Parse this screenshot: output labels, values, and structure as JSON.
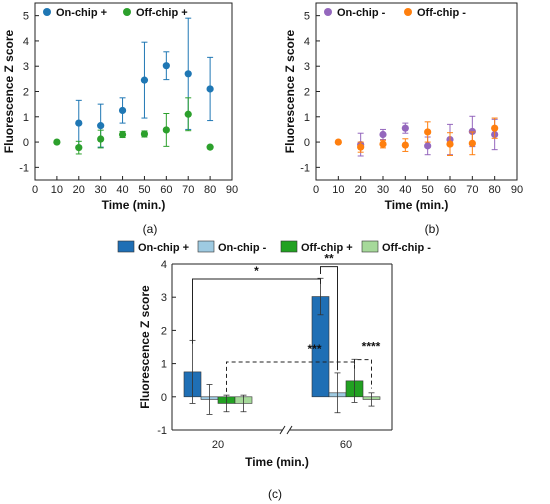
{
  "chart_data": [
    {
      "type": "scatter",
      "panel": "(a)",
      "xlabel": "Time (min.)",
      "ylabel": "Fluorescence Z score",
      "xlim": [
        0,
        90
      ],
      "ylim": [
        -1.5,
        5.5
      ],
      "xticks": [
        0,
        10,
        20,
        30,
        40,
        50,
        60,
        70,
        80,
        90
      ],
      "yticks": [
        -1,
        0,
        1,
        2,
        3,
        4,
        5
      ],
      "legend": "top-left",
      "grid": false,
      "series": [
        {
          "name": "On-chip +",
          "color": "#1f77b4",
          "points": [
            {
              "x": 20,
              "y": 0.75,
              "err": 0.9
            },
            {
              "x": 30,
              "y": 0.65,
              "err": 0.85
            },
            {
              "x": 40,
              "y": 1.25,
              "err": 0.5
            },
            {
              "x": 50,
              "y": 2.45,
              "err": 1.5
            },
            {
              "x": 60,
              "y": 3.02,
              "err": 0.55
            },
            {
              "x": 70,
              "y": 2.7,
              "err": 2.2
            },
            {
              "x": 80,
              "y": 2.1,
              "err": 1.25
            }
          ]
        },
        {
          "name": "Off-chip +",
          "color": "#2ca02c",
          "points": [
            {
              "x": 10,
              "y": 0.0,
              "err": 0.0
            },
            {
              "x": 20,
              "y": -0.22,
              "err": 0.25
            },
            {
              "x": 30,
              "y": 0.12,
              "err": 0.35
            },
            {
              "x": 40,
              "y": 0.3,
              "err": 0.12
            },
            {
              "x": 50,
              "y": 0.32,
              "err": 0.12
            },
            {
              "x": 60,
              "y": 0.48,
              "err": 0.65
            },
            {
              "x": 70,
              "y": 1.1,
              "err": 0.65
            },
            {
              "x": 80,
              "y": -0.2,
              "err": 0.0
            }
          ]
        }
      ]
    },
    {
      "type": "scatter",
      "panel": "(b)",
      "xlabel": "Time (min.)",
      "ylabel": "Fluorescence Z score",
      "xlim": [
        0,
        90
      ],
      "ylim": [
        -1.5,
        5.5
      ],
      "xticks": [
        0,
        10,
        20,
        30,
        40,
        50,
        60,
        70,
        80,
        90
      ],
      "yticks": [
        -1,
        0,
        1,
        2,
        3,
        4,
        5
      ],
      "legend": "top-left",
      "grid": false,
      "series": [
        {
          "name": "On-chip -",
          "color": "#9467bd",
          "points": [
            {
              "x": 20,
              "y": -0.1,
              "err": 0.45
            },
            {
              "x": 30,
              "y": 0.3,
              "err": 0.2
            },
            {
              "x": 40,
              "y": 0.55,
              "err": 0.2
            },
            {
              "x": 50,
              "y": -0.15,
              "err": 0.35
            },
            {
              "x": 60,
              "y": 0.1,
              "err": 0.6
            },
            {
              "x": 70,
              "y": 0.42,
              "err": 0.6
            },
            {
              "x": 80,
              "y": 0.3,
              "err": 0.6
            }
          ]
        },
        {
          "name": "Off-chip -",
          "color": "#ff7f0e",
          "points": [
            {
              "x": 10,
              "y": 0.0,
              "err": 0.0
            },
            {
              "x": 20,
              "y": -0.2,
              "err": 0.2
            },
            {
              "x": 30,
              "y": -0.08,
              "err": 0.15
            },
            {
              "x": 40,
              "y": -0.12,
              "err": 0.25
            },
            {
              "x": 50,
              "y": 0.4,
              "err": 0.4
            },
            {
              "x": 60,
              "y": -0.08,
              "err": 0.45
            },
            {
              "x": 70,
              "y": -0.05,
              "err": 0.45
            },
            {
              "x": 80,
              "y": 0.55,
              "err": 0.4
            }
          ]
        }
      ]
    },
    {
      "type": "bar",
      "panel": "(c)",
      "xlabel": "Time (min.)",
      "ylabel": "Fluorescence Z score",
      "categories": [
        "20",
        "60"
      ],
      "ylim": [
        -1,
        4
      ],
      "yticks": [
        -1,
        0,
        1,
        2,
        3,
        4
      ],
      "legend": "top",
      "axis_break": true,
      "series": [
        {
          "name": "On-chip +",
          "color": "#1f6fb5",
          "values": [
            0.75,
            3.02
          ],
          "errors": [
            0.95,
            0.55
          ]
        },
        {
          "name": "On-chip -",
          "color": "#9ecae1",
          "values": [
            -0.08,
            0.12
          ],
          "errors": [
            0.45,
            0.6
          ]
        },
        {
          "name": "Off-chip +",
          "color": "#22a122",
          "values": [
            -0.2,
            0.48
          ],
          "errors": [
            0.25,
            0.65
          ]
        },
        {
          "name": "Off-chip -",
          "color": "#a6d99a",
          "values": [
            -0.2,
            -0.08
          ],
          "errors": [
            0.25,
            0.2
          ]
        }
      ],
      "annotations": [
        "*",
        "**",
        "***",
        "****"
      ]
    }
  ],
  "captions": {
    "a": "(a)",
    "b": "(b)",
    "c": "(c)"
  }
}
